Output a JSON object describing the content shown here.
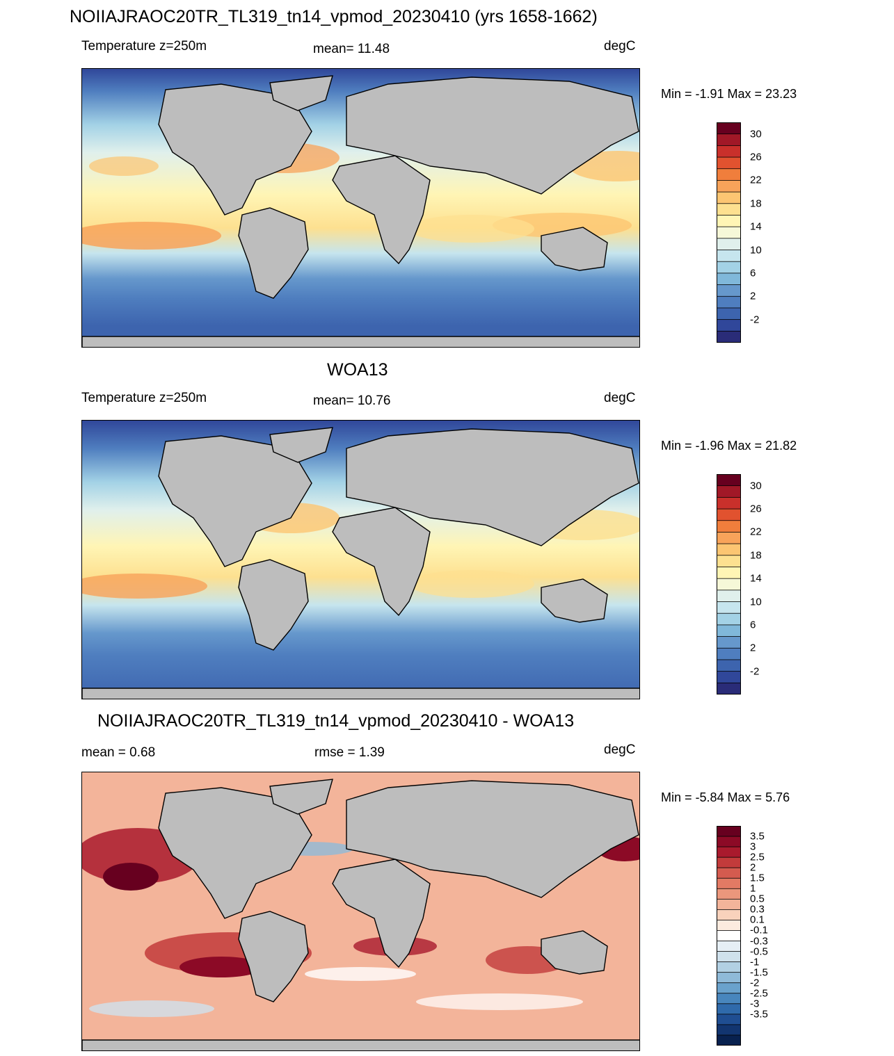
{
  "chart_data": [
    {
      "type": "heatmap",
      "title": "NOIIAJRAOC20TR_TL319_tn14_vpmod_20230410 (yrs 1658-1662)",
      "left_label": "Temperature z=250m",
      "mean_label": "mean=  11.48",
      "units": "degC",
      "minmax_label": "Min =  -1.91 Max =  23.23",
      "colorbar_ticks": [
        "30",
        "26",
        "22",
        "18",
        "14",
        "10",
        "6",
        "2",
        "-2"
      ],
      "colorbar_colors": [
        "#67001f",
        "#a11827",
        "#c9302b",
        "#e1522f",
        "#f07e3c",
        "#f8a35a",
        "#fcc572",
        "#fde090",
        "#fff5b5",
        "#f6f8d8",
        "#e0f0ec",
        "#c6e5ee",
        "#a3d2e6",
        "#80b8da",
        "#6698cc",
        "#4f7ebf",
        "#3d64ae",
        "#30479a",
        "#2a2c78"
      ]
    },
    {
      "type": "heatmap",
      "title": "WOA13",
      "left_label": "Temperature z=250m",
      "mean_label": "mean=  10.76",
      "units": "degC",
      "minmax_label": "Min =  -1.96 Max =  21.82",
      "colorbar_ticks": [
        "30",
        "26",
        "22",
        "18",
        "14",
        "10",
        "6",
        "2",
        "-2"
      ],
      "colorbar_colors": [
        "#67001f",
        "#a11827",
        "#c9302b",
        "#e1522f",
        "#f07e3c",
        "#f8a35a",
        "#fcc572",
        "#fde090",
        "#fff5b5",
        "#f6f8d8",
        "#e0f0ec",
        "#c6e5ee",
        "#a3d2e6",
        "#80b8da",
        "#6698cc",
        "#4f7ebf",
        "#3d64ae",
        "#30479a",
        "#2a2c78"
      ]
    },
    {
      "type": "heatmap",
      "title": "NOIIAJRAOC20TR_TL319_tn14_vpmod_20230410 - WOA13",
      "mean_label": "mean =   0.68",
      "rmse_label": "rmse =   1.39",
      "units": "degC",
      "minmax_label": "Min =  -5.84 Max =   5.76",
      "colorbar_ticks": [
        "3.5",
        "3",
        "2.5",
        "2",
        "1.5",
        "1",
        "0.5",
        "0.3",
        "0.1",
        "-0.1",
        "-0.3",
        "-0.5",
        "-1",
        "-1.5",
        "-2",
        "-2.5",
        "-3",
        "-3.5"
      ],
      "colorbar_colors": [
        "#67001f",
        "#8c0a26",
        "#a91a2d",
        "#c23b3b",
        "#d45b4f",
        "#e27a64",
        "#eb977c",
        "#f3b49a",
        "#f9d2bc",
        "#fcebdf",
        "#ffffff",
        "#e6eff5",
        "#cfe1ec",
        "#b2d0e3",
        "#8fbad8",
        "#6aa2cc",
        "#4886bd",
        "#2f6aab",
        "#1f4e92",
        "#123570",
        "#08214f"
      ]
    }
  ]
}
